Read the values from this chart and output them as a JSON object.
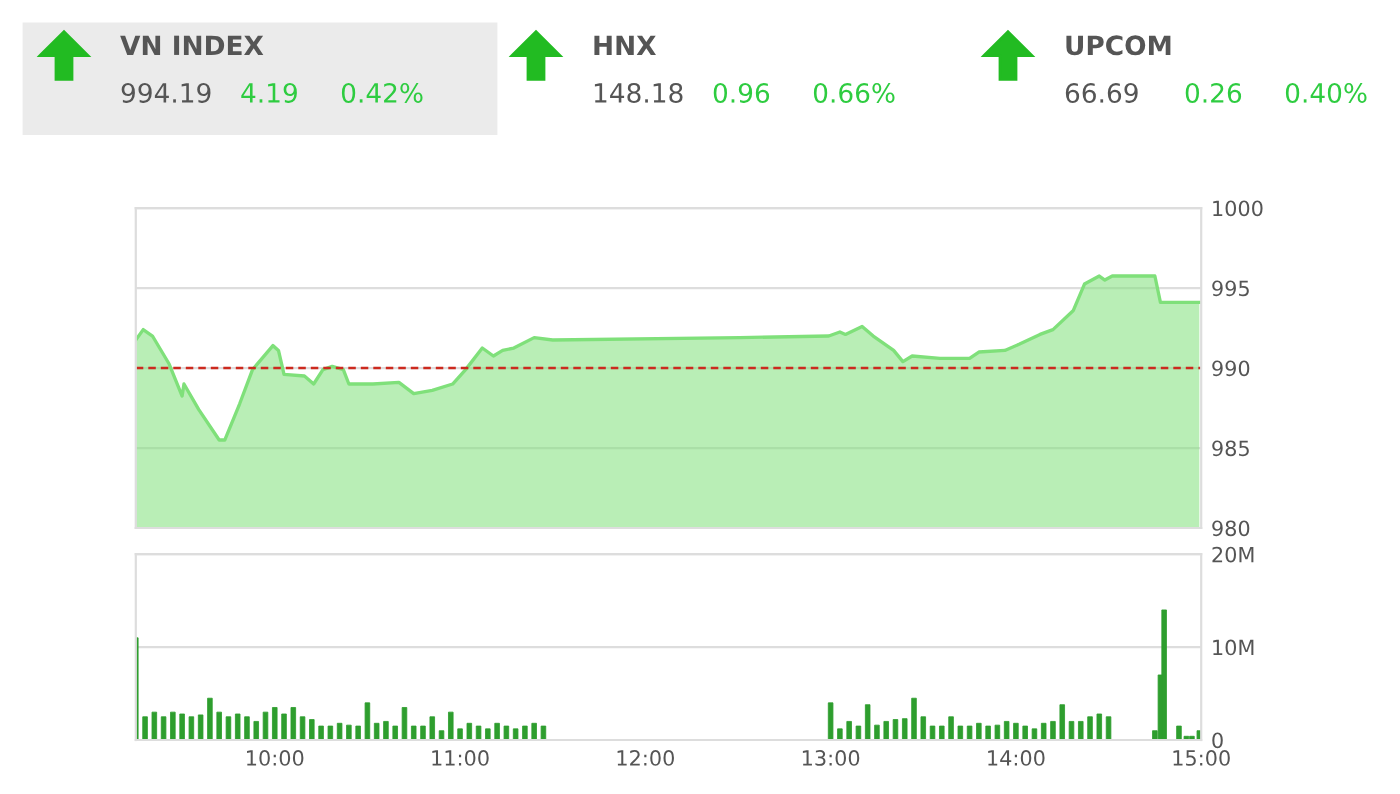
{
  "chart_data": [
    {
      "type": "other",
      "annotations": [
        "VN INDEX",
        "994.19",
        "4.19",
        "0.42%",
        "HNX",
        "148.18",
        "0.96",
        "0.66%",
        "UPCOM",
        "66.69",
        "0.26",
        "0.40%"
      ]
    },
    {
      "type": "area",
      "ylim": [
        980,
        1000
      ],
      "yticks": [
        980,
        985,
        990,
        995,
        1000
      ],
      "xlim": [
        9.25,
        15
      ],
      "xticks": [
        {
          "value": 10,
          "label": null
        },
        {
          "value": 11,
          "label": null
        },
        {
          "value": 12,
          "label": null
        },
        {
          "value": 13,
          "label": null
        },
        {
          "value": 14,
          "label": null
        },
        {
          "value": 15,
          "label": null
        }
      ],
      "tick_labels": "y",
      "grid": "y",
      "ref_lines": [
        {
          "axis": "y",
          "value": 990,
          "color": "#cc2a1f",
          "line_style": "dashed"
        }
      ],
      "series": [
        {
          "color": "#7fe07a",
          "x": [
            9.25,
            9.29,
            9.34,
            9.43,
            9.5,
            9.51,
            9.59,
            9.7,
            9.73,
            9.81,
            9.88,
            9.99,
            10.02,
            10.05,
            10.16,
            10.21,
            10.26,
            10.31,
            10.37,
            10.4,
            10.53,
            10.67,
            10.75,
            10.85,
            10.96,
            11.03,
            11.12,
            11.18,
            11.23,
            11.29,
            11.4,
            11.5,
            12.51,
            12.99,
            13.05,
            13.08,
            13.17,
            13.23,
            13.34,
            13.39,
            13.44,
            13.59,
            13.75,
            13.8,
            13.94,
            14.02,
            14.13,
            14.2,
            14.31,
            14.37,
            14.45,
            14.48,
            14.52,
            14.75,
            14.78,
            14.99
          ],
          "values": [
            991.75,
            992.4,
            992,
            990.25,
            988.25,
            989,
            987.4,
            985.5,
            985.5,
            987.75,
            989.9,
            991.4,
            991.1,
            989.6,
            989.5,
            989,
            989.9,
            990.1,
            989.9,
            989,
            989,
            989.1,
            988.4,
            988.6,
            989,
            989.9,
            991.25,
            990.75,
            991.1,
            991.25,
            991.9,
            991.75,
            991.9,
            992,
            992.25,
            992.1,
            992.6,
            992,
            991.1,
            990.4,
            990.75,
            990.6,
            990.6,
            991,
            991.1,
            991.5,
            992.1,
            992.4,
            993.6,
            995.25,
            995.75,
            995.5,
            995.75,
            995.75,
            994.1,
            994.1
          ]
        }
      ]
    },
    {
      "type": "bar",
      "ylim": [
        0,
        20
      ],
      "yticks": [
        0,
        {
          "value": 10,
          "label": "10M"
        },
        {
          "value": 20,
          "label": "20M"
        }
      ],
      "xlim": [
        9.25,
        15
      ],
      "xticks": [
        {
          "value": 10,
          "label": "10:00"
        },
        {
          "value": 11,
          "label": "11:00"
        },
        {
          "value": 12,
          "label": "12:00"
        },
        {
          "value": 13,
          "label": "13:00"
        },
        {
          "value": 14,
          "label": "14:00"
        },
        {
          "value": 15,
          "label": "15:00"
        }
      ],
      "grid": "y",
      "series": [
        {
          "color": "#2e9e2e",
          "x": [
            9.25,
            9.3,
            9.35,
            9.4,
            9.45,
            9.5,
            9.55,
            9.6,
            9.65,
            9.7,
            9.75,
            9.8,
            9.85,
            9.9,
            9.95,
            10,
            10.05,
            10.1,
            10.15,
            10.2,
            10.25,
            10.3,
            10.35,
            10.4,
            10.45,
            10.5,
            10.55,
            10.6,
            10.65,
            10.7,
            10.75,
            10.8,
            10.85,
            10.9,
            10.95,
            11,
            11.05,
            11.1,
            11.15,
            11.2,
            11.25,
            11.3,
            11.35,
            11.4,
            11.45,
            13,
            13.05,
            13.1,
            13.15,
            13.2,
            13.25,
            13.3,
            13.35,
            13.4,
            13.45,
            13.5,
            13.55,
            13.6,
            13.65,
            13.7,
            13.75,
            13.8,
            13.85,
            13.9,
            13.95,
            14,
            14.05,
            14.1,
            14.15,
            14.2,
            14.25,
            14.3,
            14.35,
            14.4,
            14.45,
            14.5,
            14.75,
            14.78,
            14.8,
            14.88,
            14.92,
            14.95,
            14.99
          ],
          "values": [
            11,
            2.5,
            3,
            2.5,
            3,
            2.8,
            2.5,
            2.7,
            4.5,
            3,
            2.5,
            2.8,
            2.5,
            2,
            3,
            3.5,
            2.8,
            3.5,
            2.5,
            2.2,
            1.5,
            1.5,
            1.8,
            1.6,
            1.5,
            4,
            1.8,
            2,
            1.5,
            3.5,
            1.5,
            1.5,
            2.5,
            1,
            3,
            1.2,
            1.8,
            1.5,
            1.2,
            1.8,
            1.5,
            1.2,
            1.5,
            1.8,
            1.5,
            4,
            1.2,
            2,
            1.5,
            3.8,
            1.6,
            2,
            2.2,
            2.3,
            4.5,
            2.5,
            1.5,
            1.5,
            2.5,
            1.5,
            1.5,
            1.8,
            1.5,
            1.6,
            2,
            1.8,
            1.5,
            1.2,
            1.8,
            2,
            3.8,
            2,
            2,
            2.5,
            2.8,
            2.5,
            1,
            7,
            14,
            1.5,
            0.4,
            0.4,
            1
          ]
        }
      ]
    }
  ]
}
